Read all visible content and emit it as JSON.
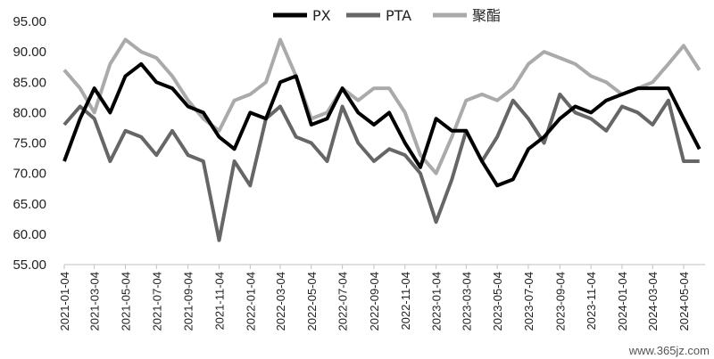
{
  "chart_data": {
    "type": "line",
    "title": "",
    "xlabel": "",
    "ylabel": "",
    "ylim": [
      55,
      95
    ],
    "yticks": [
      "55.00",
      "60.00",
      "65.00",
      "70.00",
      "75.00",
      "80.00",
      "85.00",
      "90.00",
      "95.00"
    ],
    "xticks": [
      "2021-01-04",
      "2021-03-04",
      "2021-05-04",
      "2021-07-04",
      "2021-09-04",
      "2021-11-04",
      "2022-01-04",
      "2022-03-04",
      "2022-05-04",
      "2022-07-04",
      "2022-09-04",
      "2022-11-04",
      "2023-01-04",
      "2023-03-04",
      "2023-05-04",
      "2023-07-04",
      "2023-09-04",
      "2023-11-04",
      "2024-01-04",
      "2024-03-04",
      "2024-05-04"
    ],
    "grid": false,
    "legend_position": "top-center",
    "x": [
      "2021-01-04",
      "2021-02-04",
      "2021-03-04",
      "2021-04-04",
      "2021-05-04",
      "2021-06-04",
      "2021-07-04",
      "2021-08-04",
      "2021-09-04",
      "2021-10-04",
      "2021-11-04",
      "2021-12-04",
      "2022-01-04",
      "2022-02-04",
      "2022-03-04",
      "2022-04-04",
      "2022-05-04",
      "2022-06-04",
      "2022-07-04",
      "2022-08-04",
      "2022-09-04",
      "2022-10-04",
      "2022-11-04",
      "2022-12-04",
      "2023-01-04",
      "2023-02-04",
      "2023-03-04",
      "2023-04-04",
      "2023-05-04",
      "2023-06-04",
      "2023-07-04",
      "2023-08-04",
      "2023-09-04",
      "2023-10-04",
      "2023-11-04",
      "2023-12-04",
      "2024-01-04",
      "2024-02-04",
      "2024-03-04",
      "2024-04-04",
      "2024-05-04",
      "2024-06-04"
    ],
    "series": [
      {
        "name": "PX",
        "color": "#000000",
        "values": [
          72,
          79,
          84,
          80,
          86,
          88,
          85,
          84,
          81,
          80,
          76,
          74,
          80,
          79,
          85,
          86,
          78,
          79,
          84,
          80,
          78,
          80,
          75,
          71,
          79,
          77,
          77,
          72,
          68,
          69,
          74,
          76,
          79,
          81,
          80,
          82,
          83,
          84,
          84,
          84,
          79,
          74
        ]
      },
      {
        "name": "PTA",
        "color": "#666666",
        "values": [
          78,
          81,
          79,
          72,
          77,
          76,
          73,
          77,
          73,
          72,
          59,
          72,
          68,
          79,
          81,
          76,
          75,
          72,
          81,
          75,
          72,
          74,
          73,
          70,
          62,
          69,
          77,
          72,
          76,
          82,
          79,
          75,
          83,
          80,
          79,
          77,
          81,
          80,
          78,
          82,
          72,
          72
        ]
      },
      {
        "name": "聚酯",
        "color": "#aaaaaa",
        "values": [
          87,
          84,
          80,
          88,
          92,
          90,
          89,
          86,
          82,
          79,
          77,
          82,
          83,
          85,
          92,
          86,
          79,
          80,
          84,
          82,
          84,
          84,
          80,
          73,
          70,
          76,
          82,
          83,
          82,
          84,
          88,
          90,
          89,
          88,
          86,
          85,
          83,
          84,
          85,
          88,
          91,
          87
        ]
      }
    ]
  },
  "watermark": "www.365jz.com"
}
